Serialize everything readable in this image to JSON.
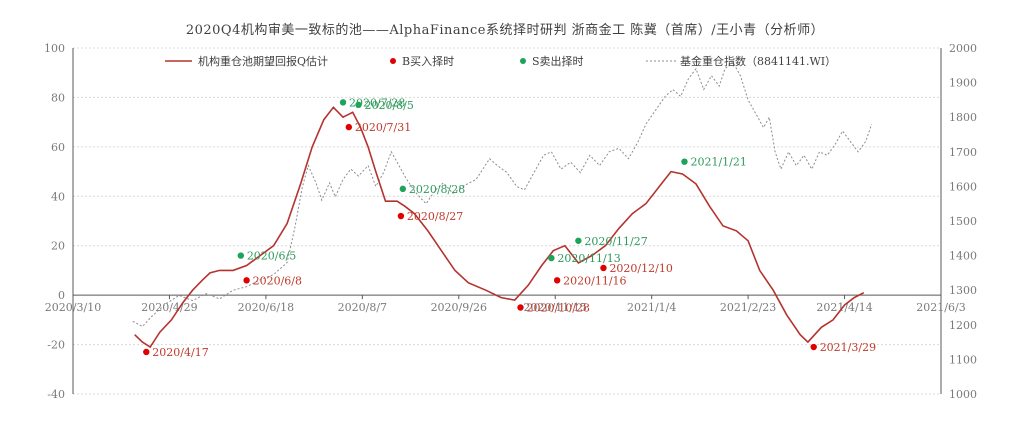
{
  "chart_data": {
    "type": "line",
    "title": "2020Q4机构审美一致标的池——AlphaFinance系统择时研判        浙商金工  陈冀（首席）/王小青（分析师）",
    "x_ticks": [
      "2020/3/10",
      "2020/4/29",
      "2020/6/18",
      "2020/8/7",
      "2020/9/26",
      "2020/11/15",
      "2021/1/4",
      "2021/2/23",
      "2021/4/14",
      "2021/6/3"
    ],
    "x_range": [
      "2020/3/10",
      "2021/6/3"
    ],
    "y_left": {
      "ticks": [
        "100",
        "80",
        "60",
        "40",
        "20",
        "0",
        "-20",
        "-40"
      ],
      "range": [
        -40,
        100
      ]
    },
    "y_right": {
      "ticks": [
        "2000",
        "1900",
        "1800",
        "1700",
        "1600",
        "1500",
        "1400",
        "1300",
        "1200",
        "1100",
        "1000"
      ],
      "range": [
        1000,
        2000
      ]
    },
    "legend": {
      "main": "机构重仓池期望回报Q估计",
      "buy": "B买入择时",
      "sell": "S卖出择时",
      "index": "基金重仓指数（8841141.WI）"
    },
    "colors": {
      "main": "#b5332f",
      "buy": "#e00000",
      "sell": "#1ea35b",
      "index": "#8c8c8c",
      "sell_text": "#2e9a5c",
      "buy_text": "#c0392b"
    },
    "series": [
      {
        "name": "机构重仓池期望回报Q估计",
        "axis": "left",
        "points": [
          [
            "2020/4/11",
            -16
          ],
          [
            "2020/4/15",
            -19
          ],
          [
            "2020/4/19",
            -21
          ],
          [
            "2020/4/24",
            -15
          ],
          [
            "2020/4/30",
            -10
          ],
          [
            "2020/5/6",
            -3
          ],
          [
            "2020/5/11",
            2
          ],
          [
            "2020/5/16",
            6
          ],
          [
            "2020/5/20",
            9
          ],
          [
            "2020/5/25",
            10
          ],
          [
            "2020/6/1",
            10
          ],
          [
            "2020/6/8",
            12
          ],
          [
            "2020/6/15",
            16
          ],
          [
            "2020/6/22",
            20
          ],
          [
            "2020/6/29",
            29
          ],
          [
            "2020/7/6",
            45
          ],
          [
            "2020/7/12",
            60
          ],
          [
            "2020/7/18",
            71
          ],
          [
            "2020/7/23",
            76
          ],
          [
            "2020/7/28",
            72
          ],
          [
            "2020/8/2",
            74
          ],
          [
            "2020/8/6",
            68
          ],
          [
            "2020/8/10",
            60
          ],
          [
            "2020/8/14",
            50
          ],
          [
            "2020/8/19",
            38
          ],
          [
            "2020/8/25",
            38
          ],
          [
            "2020/8/29",
            36
          ],
          [
            "2020/9/3",
            33
          ],
          [
            "2020/9/10",
            26
          ],
          [
            "2020/9/17",
            18
          ],
          [
            "2020/9/24",
            10
          ],
          [
            "2020/10/1",
            5
          ],
          [
            "2020/10/10",
            2
          ],
          [
            "2020/10/18",
            -1
          ],
          [
            "2020/10/25",
            -2
          ],
          [
            "2020/11/1",
            4
          ],
          [
            "2020/11/8",
            12
          ],
          [
            "2020/11/14",
            18
          ],
          [
            "2020/11/20",
            20
          ],
          [
            "2020/11/27",
            13
          ],
          [
            "2020/12/4",
            16
          ],
          [
            "2020/12/11",
            20
          ],
          [
            "2020/12/18",
            27
          ],
          [
            "2020/12/25",
            33
          ],
          [
            "2021/1/1",
            37
          ],
          [
            "2021/1/8",
            44
          ],
          [
            "2021/1/14",
            50
          ],
          [
            "2021/1/20",
            49
          ],
          [
            "2021/1/27",
            45
          ],
          [
            "2021/2/3",
            36
          ],
          [
            "2021/2/10",
            28
          ],
          [
            "2021/2/17",
            26
          ],
          [
            "2021/2/23",
            22
          ],
          [
            "2021/3/1",
            10
          ],
          [
            "2021/3/8",
            2
          ],
          [
            "2021/3/15",
            -8
          ],
          [
            "2021/3/22",
            -16
          ],
          [
            "2021/3/26",
            -19
          ],
          [
            "2021/4/2",
            -13
          ],
          [
            "2021/4/8",
            -10
          ],
          [
            "2021/4/14",
            -4
          ],
          [
            "2021/4/19",
            -1
          ],
          [
            "2021/4/24",
            1
          ]
        ]
      },
      {
        "name": "基金重仓指数（8841141.WI）",
        "axis": "right",
        "points": [
          [
            "2020/4/10",
            1210
          ],
          [
            "2020/4/15",
            1195
          ],
          [
            "2020/4/20",
            1225
          ],
          [
            "2020/4/27",
            1260
          ],
          [
            "2020/5/4",
            1285
          ],
          [
            "2020/5/11",
            1270
          ],
          [
            "2020/5/18",
            1290
          ],
          [
            "2020/5/25",
            1275
          ],
          [
            "2020/6/1",
            1300
          ],
          [
            "2020/6/8",
            1310
          ],
          [
            "2020/6/15",
            1330
          ],
          [
            "2020/6/22",
            1345
          ],
          [
            "2020/6/29",
            1380
          ],
          [
            "2020/7/3",
            1480
          ],
          [
            "2020/7/7",
            1600
          ],
          [
            "2020/7/10",
            1660
          ],
          [
            "2020/7/14",
            1610
          ],
          [
            "2020/7/17",
            1560
          ],
          [
            "2020/7/21",
            1610
          ],
          [
            "2020/7/24",
            1570
          ],
          [
            "2020/7/28",
            1620
          ],
          [
            "2020/8/1",
            1650
          ],
          [
            "2020/8/5",
            1630
          ],
          [
            "2020/8/10",
            1660
          ],
          [
            "2020/8/14",
            1600
          ],
          [
            "2020/8/18",
            1640
          ],
          [
            "2020/8/22",
            1700
          ],
          [
            "2020/8/26",
            1660
          ],
          [
            "2020/8/30",
            1620
          ],
          [
            "2020/9/4",
            1580
          ],
          [
            "2020/9/9",
            1550
          ],
          [
            "2020/9/14",
            1590
          ],
          [
            "2020/9/18",
            1610
          ],
          [
            "2020/9/23",
            1580
          ],
          [
            "2020/9/28",
            1600
          ],
          [
            "2020/10/5",
            1620
          ],
          [
            "2020/10/12",
            1680
          ],
          [
            "2020/10/16",
            1660
          ],
          [
            "2020/10/21",
            1640
          ],
          [
            "2020/10/26",
            1600
          ],
          [
            "2020/10/30",
            1590
          ],
          [
            "2020/11/4",
            1640
          ],
          [
            "2020/11/9",
            1690
          ],
          [
            "2020/11/13",
            1700
          ],
          [
            "2020/11/18",
            1650
          ],
          [
            "2020/11/23",
            1670
          ],
          [
            "2020/11/28",
            1640
          ],
          [
            "2020/12/3",
            1690
          ],
          [
            "2020/12/8",
            1660
          ],
          [
            "2020/12/13",
            1700
          ],
          [
            "2020/12/18",
            1710
          ],
          [
            "2020/12/23",
            1680
          ],
          [
            "2020/12/28",
            1730
          ],
          [
            "2021/1/1",
            1780
          ],
          [
            "2021/1/6",
            1820
          ],
          [
            "2021/1/11",
            1860
          ],
          [
            "2021/1/15",
            1880
          ],
          [
            "2021/1/19",
            1860
          ],
          [
            "2021/1/23",
            1910
          ],
          [
            "2021/1/27",
            1940
          ],
          [
            "2021/1/31",
            1880
          ],
          [
            "2021/2/4",
            1920
          ],
          [
            "2021/2/8",
            1890
          ],
          [
            "2021/2/11",
            1940
          ],
          [
            "2021/2/15",
            1960
          ],
          [
            "2021/2/19",
            1920
          ],
          [
            "2021/2/23",
            1850
          ],
          [
            "2021/2/27",
            1810
          ],
          [
            "2021/3/3",
            1770
          ],
          [
            "2021/3/6",
            1800
          ],
          [
            "2021/3/9",
            1700
          ],
          [
            "2021/3/12",
            1650
          ],
          [
            "2021/3/16",
            1700
          ],
          [
            "2021/3/20",
            1660
          ],
          [
            "2021/3/24",
            1690
          ],
          [
            "2021/3/28",
            1650
          ],
          [
            "2021/4/1",
            1700
          ],
          [
            "2021/4/5",
            1690
          ],
          [
            "2021/4/9",
            1720
          ],
          [
            "2021/4/13",
            1760
          ],
          [
            "2021/4/17",
            1730
          ],
          [
            "2021/4/21",
            1700
          ],
          [
            "2021/4/25",
            1730
          ],
          [
            "2021/4/28",
            1780
          ]
        ]
      }
    ],
    "buy_points": [
      {
        "date": "2020/4/17",
        "value": -23,
        "label": "2020/4/17"
      },
      {
        "date": "2020/6/8",
        "value": 6,
        "label": "2020/6/8"
      },
      {
        "date": "2020/7/31",
        "value": 68,
        "label": "2020/7/31"
      },
      {
        "date": "2020/8/27",
        "value": 32,
        "label": "2020/8/27"
      },
      {
        "date": "2020/10/28",
        "value": -5,
        "label": "2020/10/28"
      },
      {
        "date": "2020/11/16",
        "value": 6,
        "label": "2020/11/16"
      },
      {
        "date": "2020/12/10",
        "value": 11,
        "label": "2020/12/10"
      },
      {
        "date": "2021/3/29",
        "value": -21,
        "label": "2021/3/29"
      }
    ],
    "sell_points": [
      {
        "date": "2020/6/5",
        "value": 16,
        "label": "2020/6/5"
      },
      {
        "date": "2020/7/28",
        "value": 78,
        "label": "2020/7/28"
      },
      {
        "date": "2020/8/5",
        "value": 77,
        "label": "2020/8/5"
      },
      {
        "date": "2020/8/28",
        "value": 43,
        "label": "2020/8/28"
      },
      {
        "date": "2020/11/13",
        "value": 15,
        "label": "2020/11/13"
      },
      {
        "date": "2020/11/27",
        "value": 22,
        "label": "2020/11/27"
      },
      {
        "date": "2021/1/21",
        "value": 54,
        "label": "2021/1/21"
      }
    ],
    "grid": true,
    "legend_placement": "top"
  }
}
